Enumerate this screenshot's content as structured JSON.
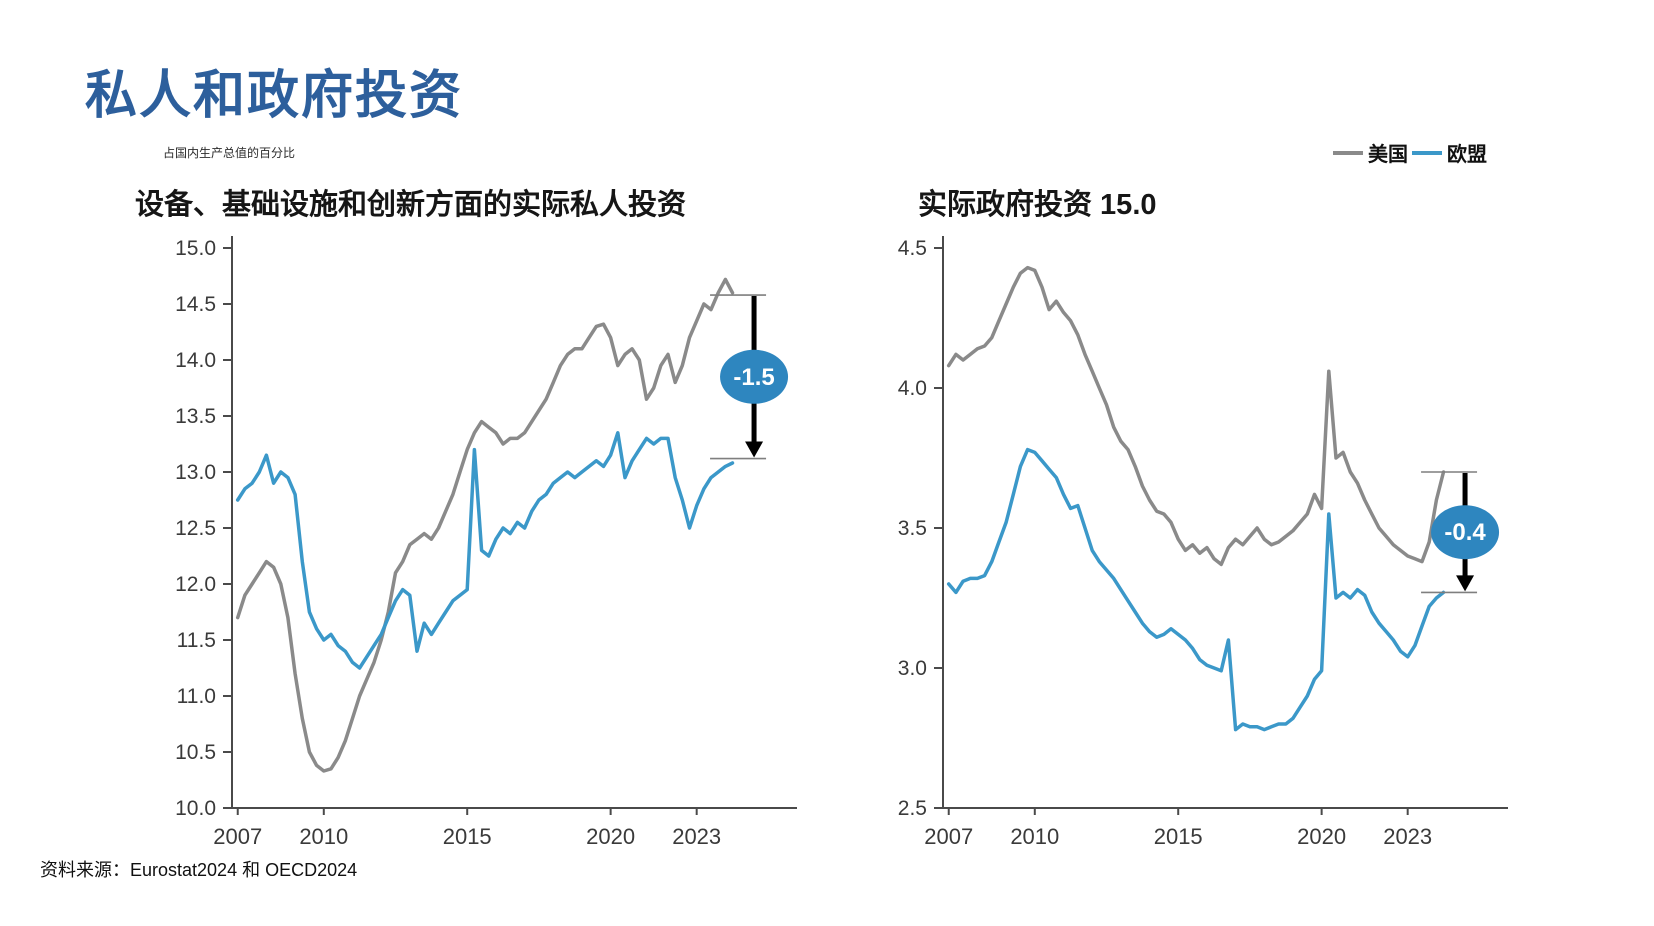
{
  "page": {
    "title": "私人和政府投资",
    "unit_note": "占国内生产总值的百分比",
    "source": "资料来源：Eurostat2024 和 OECD2024"
  },
  "legend": {
    "items": [
      {
        "label": "美国",
        "color": "#8a8a8a"
      },
      {
        "label": "欧盟",
        "color": "#3b98c9"
      }
    ]
  },
  "colors": {
    "title": "#2d5f9c",
    "axis": "#4a4a4a",
    "tick_text": "#3a3a3a",
    "us_line": "#8a8a8a",
    "eu_line": "#3b98c9",
    "annotation_fill": "#2e86bf",
    "annotation_arrow": "#000000",
    "annotation_text": "#ffffff"
  },
  "chart_data": [
    {
      "type": "line",
      "title": "设备、基础设施和创新方面的实际私人投资",
      "ylabel": "占国内生产总值的百分比",
      "xlim": [
        2006.8,
        2025.8
      ],
      "ylim": [
        10.0,
        15.0
      ],
      "yticks": [
        "15.0",
        "14.5",
        "14.0",
        "13.5",
        "13.0",
        "12.5",
        "12.0",
        "11.5",
        "11.0",
        "10.5",
        "10.0"
      ],
      "xticks": [
        2007,
        2010,
        2015,
        2020,
        2023
      ],
      "x_start": 2007,
      "x_step": 0.25,
      "series": [
        {
          "name": "美国",
          "color": "#8a8a8a",
          "values": [
            11.7,
            11.9,
            12.0,
            12.1,
            12.2,
            12.15,
            12.0,
            11.7,
            11.2,
            10.8,
            10.5,
            10.38,
            10.33,
            10.35,
            10.45,
            10.6,
            10.8,
            11.0,
            11.15,
            11.3,
            11.5,
            11.75,
            12.1,
            12.2,
            12.35,
            12.4,
            12.45,
            12.4,
            12.5,
            12.65,
            12.8,
            13.0,
            13.2,
            13.35,
            13.45,
            13.4,
            13.35,
            13.25,
            13.3,
            13.3,
            13.35,
            13.45,
            13.55,
            13.65,
            13.8,
            13.95,
            14.05,
            14.1,
            14.1,
            14.2,
            14.3,
            14.32,
            14.2,
            13.95,
            14.05,
            14.1,
            14.0,
            13.65,
            13.75,
            13.95,
            14.05,
            13.8,
            13.95,
            14.2,
            14.35,
            14.5,
            14.45,
            14.6,
            14.72,
            14.6
          ]
        },
        {
          "name": "欧盟",
          "color": "#3b98c9",
          "values": [
            12.75,
            12.85,
            12.9,
            13.0,
            13.15,
            12.9,
            13.0,
            12.95,
            12.8,
            12.2,
            11.75,
            11.6,
            11.5,
            11.55,
            11.45,
            11.4,
            11.3,
            11.25,
            11.35,
            11.45,
            11.55,
            11.7,
            11.85,
            11.95,
            11.9,
            11.4,
            11.65,
            11.55,
            11.65,
            11.75,
            11.85,
            11.9,
            11.95,
            13.2,
            12.3,
            12.25,
            12.4,
            12.5,
            12.45,
            12.55,
            12.5,
            12.65,
            12.75,
            12.8,
            12.9,
            12.95,
            13.0,
            12.95,
            13.0,
            13.05,
            13.1,
            13.05,
            13.15,
            13.35,
            12.95,
            13.1,
            13.2,
            13.3,
            13.25,
            13.3,
            13.3,
            12.95,
            12.75,
            12.5,
            12.7,
            12.85,
            12.95,
            13.0,
            13.05,
            13.08
          ]
        }
      ],
      "annotation": {
        "label": "-1.5",
        "x": 2025.0,
        "from": 14.58,
        "to": 13.12
      }
    },
    {
      "type": "line",
      "title": "实际政府投资 15.0",
      "ylabel": "占国内生产总值的百分比",
      "xlim": [
        2006.8,
        2025.8
      ],
      "ylim": [
        2.5,
        4.5
      ],
      "yticks": [
        "4.5",
        "4.0",
        "3.5",
        "3.0",
        "2.5"
      ],
      "xticks": [
        2007,
        2010,
        2015,
        2020,
        2023
      ],
      "x_start": 2007,
      "x_step": 0.25,
      "series": [
        {
          "name": "美国",
          "color": "#8a8a8a",
          "values": [
            4.08,
            4.12,
            4.1,
            4.12,
            4.14,
            4.15,
            4.18,
            4.24,
            4.3,
            4.36,
            4.41,
            4.43,
            4.42,
            4.36,
            4.28,
            4.31,
            4.27,
            4.24,
            4.19,
            4.12,
            4.06,
            4.0,
            3.94,
            3.86,
            3.81,
            3.78,
            3.72,
            3.65,
            3.6,
            3.56,
            3.55,
            3.52,
            3.46,
            3.42,
            3.44,
            3.41,
            3.43,
            3.39,
            3.37,
            3.43,
            3.46,
            3.44,
            3.47,
            3.5,
            3.46,
            3.44,
            3.45,
            3.47,
            3.49,
            3.52,
            3.55,
            3.62,
            3.57,
            4.06,
            3.75,
            3.77,
            3.7,
            3.66,
            3.6,
            3.55,
            3.5,
            3.47,
            3.44,
            3.42,
            3.4,
            3.39,
            3.38,
            3.45,
            3.6,
            3.7
          ]
        },
        {
          "name": "欧盟",
          "color": "#3b98c9",
          "values": [
            3.3,
            3.27,
            3.31,
            3.32,
            3.32,
            3.33,
            3.38,
            3.45,
            3.52,
            3.62,
            3.72,
            3.78,
            3.77,
            3.74,
            3.71,
            3.68,
            3.62,
            3.57,
            3.58,
            3.5,
            3.42,
            3.38,
            3.35,
            3.32,
            3.28,
            3.24,
            3.2,
            3.16,
            3.13,
            3.11,
            3.12,
            3.14,
            3.12,
            3.1,
            3.07,
            3.03,
            3.01,
            3.0,
            2.99,
            3.1,
            2.78,
            2.8,
            2.79,
            2.79,
            2.78,
            2.79,
            2.8,
            2.8,
            2.82,
            2.86,
            2.9,
            2.96,
            2.99,
            3.55,
            3.25,
            3.27,
            3.25,
            3.28,
            3.26,
            3.2,
            3.16,
            3.13,
            3.1,
            3.06,
            3.04,
            3.08,
            3.15,
            3.22,
            3.25,
            3.27
          ]
        }
      ],
      "annotation": {
        "label": "-0.4",
        "x": 2025.0,
        "from": 3.7,
        "to": 3.27
      }
    }
  ]
}
